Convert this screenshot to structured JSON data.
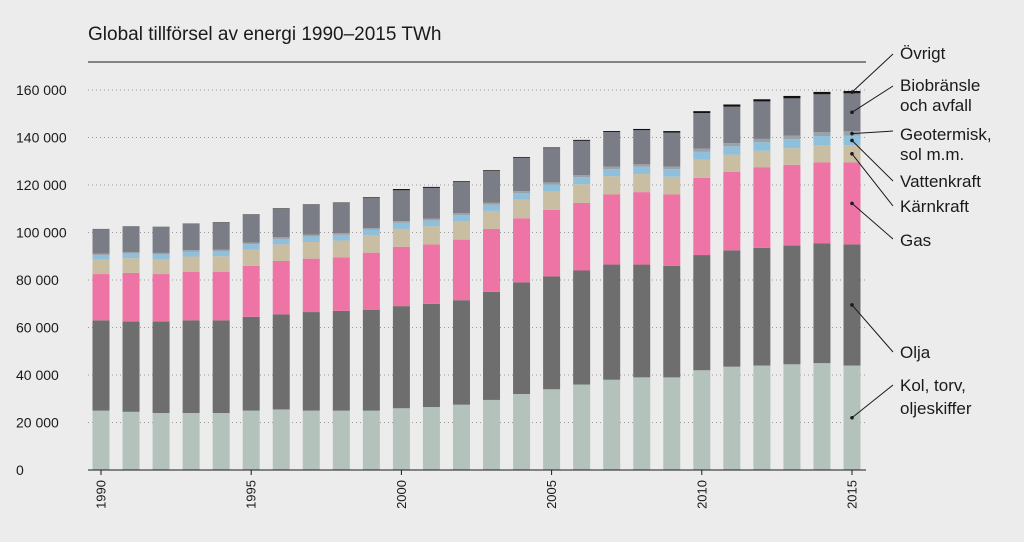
{
  "chart_data": {
    "type": "bar",
    "stacked": true,
    "title": "Global tillförsel av energi 1990–2015 TWh",
    "xlabel": "",
    "ylabel": "",
    "ylim": [
      0,
      170000
    ],
    "y_ticks": [
      0,
      20000,
      40000,
      60000,
      80000,
      100000,
      120000,
      140000,
      160000
    ],
    "y_tick_labels": [
      "0",
      "20 000",
      "40 000",
      "60 000",
      "80 000",
      "100 000",
      "120 000",
      "140 000",
      "160 000"
    ],
    "x_tick_labels": [
      "1990",
      "1995",
      "2000",
      "2005",
      "2010",
      "2015"
    ],
    "x_tick_positions": [
      1990,
      1995,
      2000,
      2005,
      2010,
      2015
    ],
    "categories": [
      1990,
      1991,
      1992,
      1993,
      1994,
      1995,
      1996,
      1997,
      1998,
      1999,
      2000,
      2001,
      2002,
      2003,
      2004,
      2005,
      2006,
      2007,
      2008,
      2009,
      2010,
      2011,
      2012,
      2013,
      2014,
      2015
    ],
    "series": [
      {
        "name": "Kol, torv, oljeskiffer",
        "legend_label": [
          "Kol, torv,",
          "oljeskiffer"
        ],
        "color": "#b3c3bc",
        "values": [
          25000,
          24500,
          24000,
          24000,
          24000,
          25000,
          25500,
          25000,
          25000,
          25000,
          26000,
          26500,
          27500,
          29500,
          32000,
          34000,
          36000,
          38000,
          39000,
          39000,
          42000,
          43500,
          44000,
          44500,
          45000,
          44000
        ]
      },
      {
        "name": "Olja",
        "legend_label": [
          "Olja"
        ],
        "color": "#6e6e6e",
        "values": [
          38000,
          38000,
          38500,
          39000,
          39000,
          39500,
          40000,
          41500,
          42000,
          42500,
          43000,
          43500,
          44000,
          45500,
          47000,
          47500,
          48000,
          48500,
          47500,
          47000,
          48500,
          49000,
          49500,
          50000,
          50500,
          51000
        ]
      },
      {
        "name": "Gas",
        "legend_label": [
          "Gas"
        ],
        "color": "#ef74a6",
        "values": [
          19500,
          20500,
          20000,
          20500,
          20500,
          21500,
          22500,
          22500,
          22500,
          24000,
          25000,
          25000,
          25500,
          26500,
          27000,
          28000,
          28500,
          29500,
          30500,
          30000,
          32500,
          33000,
          34000,
          34000,
          34000,
          34500
        ]
      },
      {
        "name": "Kärnkraft",
        "legend_label": [
          "Kärnkraft"
        ],
        "color": "#c9bea2",
        "values": [
          6000,
          6200,
          6200,
          6400,
          6500,
          6800,
          7000,
          7000,
          7100,
          7300,
          7500,
          7600,
          7700,
          7600,
          7800,
          7800,
          7800,
          7700,
          7600,
          7500,
          7700,
          7300,
          6900,
          7000,
          7200,
          7300
        ]
      },
      {
        "name": "Vattenkraft",
        "legend_label": [
          "Vattenkraft"
        ],
        "color": "#8ebfdb",
        "values": [
          2000,
          2000,
          2100,
          2100,
          2200,
          2300,
          2300,
          2400,
          2400,
          2400,
          2600,
          2500,
          2600,
          2600,
          2800,
          2900,
          3000,
          3000,
          3100,
          3200,
          3400,
          3500,
          3600,
          3800,
          3900,
          3900
        ]
      },
      {
        "name": "Geotermisk, sol m.m.",
        "legend_label": [
          "Geotermisk,",
          "sol m.m."
        ],
        "color": "#9aa1a8",
        "values": [
          600,
          600,
          600,
          600,
          600,
          700,
          700,
          700,
          700,
          700,
          700,
          700,
          800,
          800,
          800,
          900,
          900,
          1000,
          1000,
          1100,
          1200,
          1300,
          1400,
          1500,
          1700,
          1900
        ]
      },
      {
        "name": "Biobränsle och avfall",
        "legend_label": [
          "Biobränsle",
          "och avfall"
        ],
        "color": "#7b7d86",
        "values": [
          10300,
          10700,
          10900,
          11100,
          11500,
          11600,
          12000,
          12500,
          12700,
          12800,
          13000,
          13000,
          13200,
          13400,
          14100,
          14400,
          14400,
          14600,
          14400,
          14300,
          15000,
          15400,
          15800,
          15700,
          15900,
          16000
        ]
      },
      {
        "name": "Övrigt",
        "legend_label": [
          "Övrigt"
        ],
        "color": "#111111",
        "values": [
          100,
          100,
          100,
          100,
          100,
          200,
          200,
          200,
          200,
          200,
          500,
          400,
          300,
          300,
          300,
          300,
          400,
          400,
          500,
          600,
          800,
          900,
          900,
          1000,
          1000,
          1000
        ]
      }
    ]
  }
}
